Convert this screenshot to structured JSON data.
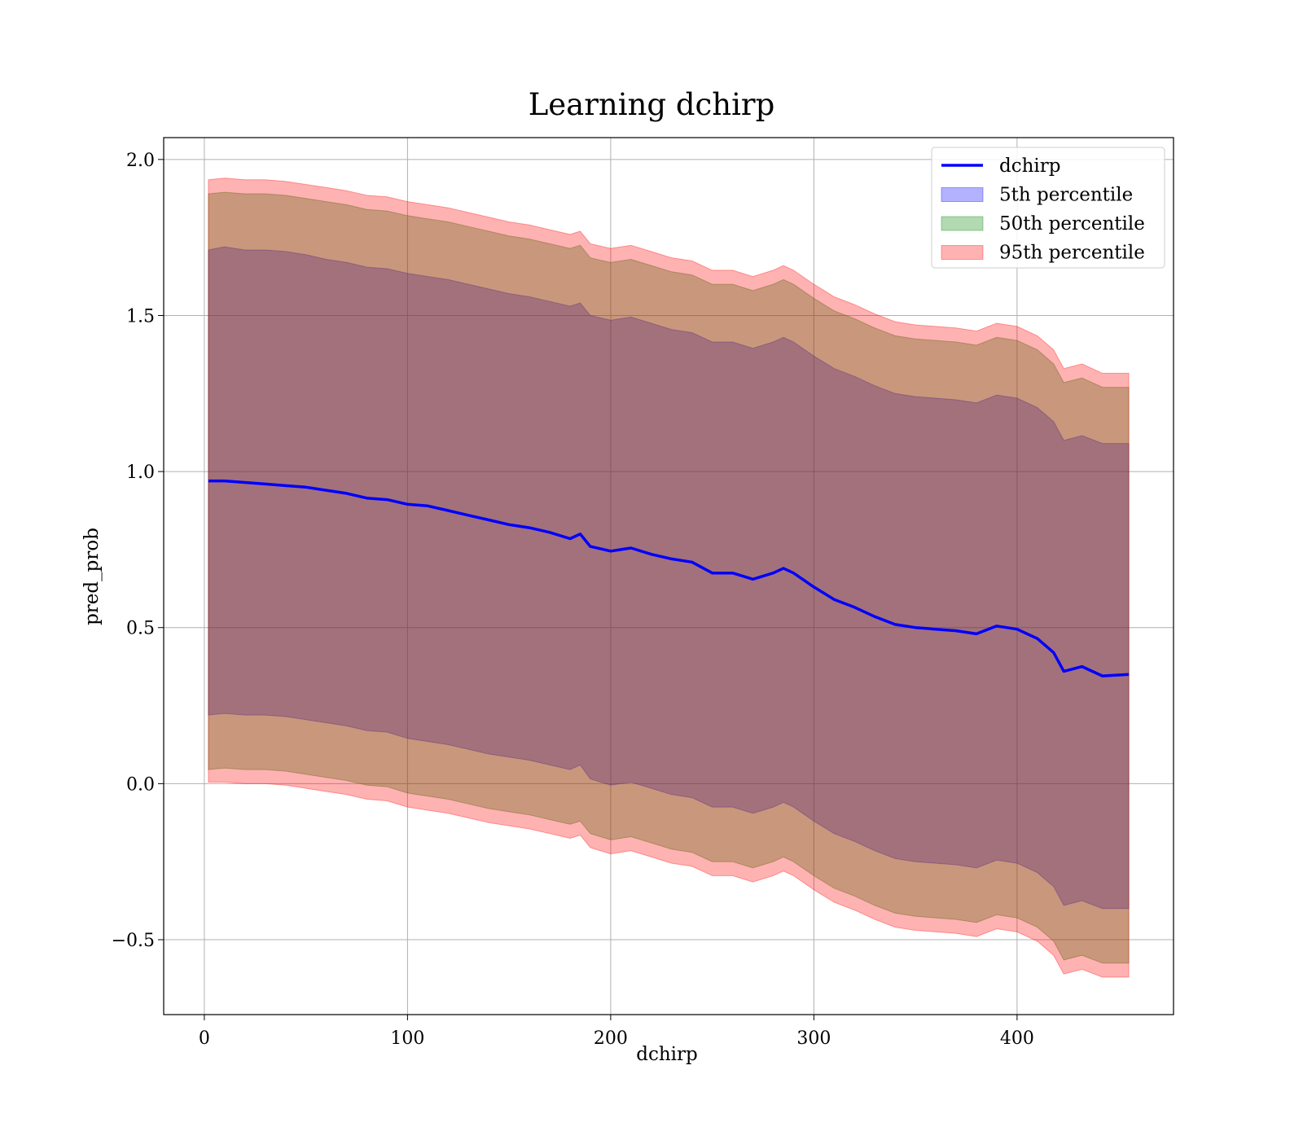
{
  "chart_data": {
    "type": "area",
    "title": "Learning dchirp",
    "xlabel": "dchirp",
    "ylabel": "pred_prob",
    "xlim": [
      -20,
      477
    ],
    "ylim": [
      -0.74,
      2.07
    ],
    "xticks": [
      0,
      100,
      200,
      300,
      400
    ],
    "yticks": [
      -0.5,
      0.0,
      0.5,
      1.0,
      1.5,
      2.0
    ],
    "xtick_labels": [
      "0",
      "100",
      "200",
      "300",
      "400"
    ],
    "ytick_labels": [
      "−0.5",
      "0.0",
      "0.5",
      "1.0",
      "1.5",
      "2.0"
    ],
    "grid": true,
    "legend_position": "top-right",
    "x": [
      2,
      10,
      20,
      30,
      40,
      50,
      60,
      70,
      80,
      90,
      100,
      110,
      120,
      130,
      140,
      150,
      160,
      170,
      180,
      185,
      190,
      200,
      210,
      220,
      230,
      240,
      250,
      260,
      270,
      280,
      285,
      290,
      300,
      310,
      320,
      330,
      340,
      350,
      360,
      370,
      380,
      390,
      400,
      410,
      418,
      423,
      432,
      442,
      455
    ],
    "series": [
      {
        "name": "dchirp",
        "kind": "line",
        "color": "#0000ff",
        "values": [
          0.97,
          0.97,
          0.965,
          0.96,
          0.955,
          0.95,
          0.94,
          0.93,
          0.915,
          0.91,
          0.895,
          0.89,
          0.875,
          0.86,
          0.845,
          0.83,
          0.82,
          0.805,
          0.785,
          0.8,
          0.76,
          0.745,
          0.755,
          0.735,
          0.72,
          0.71,
          0.675,
          0.675,
          0.655,
          0.675,
          0.69,
          0.675,
          0.63,
          0.59,
          0.565,
          0.535,
          0.51,
          0.5,
          0.495,
          0.49,
          0.48,
          0.505,
          0.495,
          0.465,
          0.42,
          0.36,
          0.375,
          0.345,
          0.35
        ]
      },
      {
        "name": "5th percentile",
        "kind": "band",
        "color": "#0000ff",
        "opacity": 0.3,
        "lower": [
          0.22,
          0.225,
          0.22,
          0.22,
          0.215,
          0.205,
          0.195,
          0.185,
          0.17,
          0.165,
          0.145,
          0.135,
          0.125,
          0.11,
          0.095,
          0.085,
          0.075,
          0.06,
          0.045,
          0.06,
          0.015,
          -0.005,
          0.005,
          -0.015,
          -0.035,
          -0.045,
          -0.075,
          -0.075,
          -0.095,
          -0.075,
          -0.06,
          -0.075,
          -0.12,
          -0.16,
          -0.185,
          -0.215,
          -0.24,
          -0.25,
          -0.255,
          -0.26,
          -0.27,
          -0.245,
          -0.255,
          -0.285,
          -0.33,
          -0.39,
          -0.375,
          -0.4,
          -0.4
        ],
        "upper": [
          1.71,
          1.72,
          1.71,
          1.71,
          1.705,
          1.695,
          1.68,
          1.67,
          1.655,
          1.65,
          1.635,
          1.625,
          1.615,
          1.6,
          1.585,
          1.57,
          1.56,
          1.545,
          1.53,
          1.54,
          1.5,
          1.485,
          1.495,
          1.475,
          1.455,
          1.445,
          1.415,
          1.415,
          1.395,
          1.415,
          1.43,
          1.415,
          1.37,
          1.33,
          1.305,
          1.275,
          1.25,
          1.24,
          1.235,
          1.23,
          1.22,
          1.245,
          1.235,
          1.205,
          1.16,
          1.1,
          1.115,
          1.09,
          1.09
        ]
      },
      {
        "name": "50th percentile",
        "kind": "band",
        "color": "#008000",
        "opacity": 0.3,
        "lower": [
          0.045,
          0.05,
          0.045,
          0.045,
          0.04,
          0.03,
          0.02,
          0.01,
          -0.005,
          -0.01,
          -0.03,
          -0.04,
          -0.05,
          -0.065,
          -0.08,
          -0.09,
          -0.1,
          -0.115,
          -0.13,
          -0.12,
          -0.16,
          -0.18,
          -0.17,
          -0.19,
          -0.21,
          -0.22,
          -0.25,
          -0.25,
          -0.27,
          -0.25,
          -0.235,
          -0.25,
          -0.295,
          -0.335,
          -0.36,
          -0.39,
          -0.415,
          -0.425,
          -0.43,
          -0.435,
          -0.445,
          -0.42,
          -0.43,
          -0.46,
          -0.505,
          -0.565,
          -0.55,
          -0.575,
          -0.575
        ],
        "upper": [
          1.89,
          1.895,
          1.89,
          1.89,
          1.885,
          1.875,
          1.865,
          1.855,
          1.84,
          1.835,
          1.82,
          1.81,
          1.8,
          1.785,
          1.77,
          1.755,
          1.745,
          1.73,
          1.715,
          1.725,
          1.685,
          1.67,
          1.68,
          1.66,
          1.64,
          1.63,
          1.6,
          1.6,
          1.58,
          1.6,
          1.615,
          1.6,
          1.555,
          1.515,
          1.49,
          1.46,
          1.435,
          1.425,
          1.42,
          1.415,
          1.405,
          1.43,
          1.42,
          1.39,
          1.345,
          1.285,
          1.3,
          1.27,
          1.27
        ]
      },
      {
        "name": "95th percentile",
        "kind": "band",
        "color": "#ff0000",
        "opacity": 0.3,
        "lower": [
          0.005,
          0.005,
          0.0,
          0.0,
          -0.005,
          -0.015,
          -0.025,
          -0.035,
          -0.05,
          -0.055,
          -0.075,
          -0.085,
          -0.095,
          -0.11,
          -0.125,
          -0.135,
          -0.145,
          -0.16,
          -0.175,
          -0.165,
          -0.205,
          -0.225,
          -0.215,
          -0.235,
          -0.255,
          -0.265,
          -0.295,
          -0.295,
          -0.315,
          -0.295,
          -0.28,
          -0.295,
          -0.34,
          -0.38,
          -0.405,
          -0.435,
          -0.46,
          -0.47,
          -0.475,
          -0.48,
          -0.49,
          -0.465,
          -0.475,
          -0.505,
          -0.55,
          -0.61,
          -0.595,
          -0.62,
          -0.62
        ],
        "upper": [
          1.935,
          1.94,
          1.935,
          1.935,
          1.93,
          1.92,
          1.91,
          1.9,
          1.885,
          1.88,
          1.865,
          1.855,
          1.845,
          1.83,
          1.815,
          1.8,
          1.79,
          1.775,
          1.76,
          1.77,
          1.73,
          1.715,
          1.725,
          1.705,
          1.685,
          1.675,
          1.645,
          1.645,
          1.625,
          1.645,
          1.66,
          1.645,
          1.6,
          1.56,
          1.535,
          1.505,
          1.48,
          1.47,
          1.465,
          1.46,
          1.45,
          1.475,
          1.465,
          1.435,
          1.39,
          1.33,
          1.345,
          1.315,
          1.315
        ]
      }
    ]
  }
}
